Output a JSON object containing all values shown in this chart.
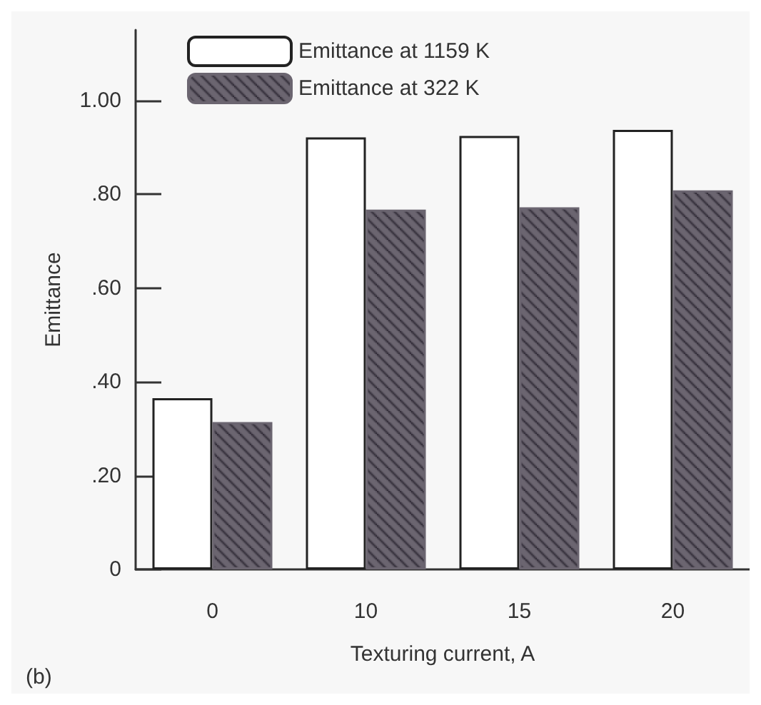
{
  "chart_data": {
    "type": "bar",
    "xlabel": "Texturing current, A",
    "ylabel": "Emittance",
    "categories": [
      "0",
      "10",
      "15",
      "20"
    ],
    "series": [
      {
        "name": "Emittance at 1159 K",
        "color": "#ffffff",
        "values": [
          0.365,
          0.921,
          0.924,
          0.937
        ]
      },
      {
        "name": "Emittance at 322 K",
        "color": "#6b6570",
        "values": [
          0.314,
          0.767,
          0.772,
          0.808
        ]
      }
    ],
    "ylim": [
      0,
      1.15
    ],
    "yticks": [
      {
        "value": 0,
        "label": "0"
      },
      {
        "value": 0.2,
        "label": ".20"
      },
      {
        "value": 0.4,
        "label": ".40"
      },
      {
        "value": 0.6,
        "label": ".60"
      },
      {
        "value": 0.8,
        "label": ".80"
      },
      {
        "value": 1,
        "label": "1.00"
      }
    ],
    "grid": false,
    "legend": "top left",
    "annotations": [
      "(b)"
    ]
  }
}
